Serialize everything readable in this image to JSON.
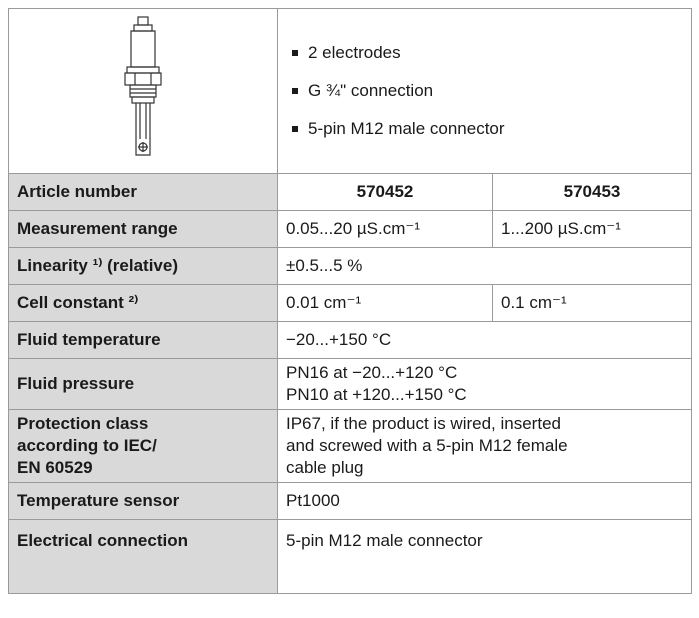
{
  "features": [
    "2 electrodes",
    "G ¾\" connection",
    "5-pin M12 male connector"
  ],
  "table": {
    "header": [
      "Article number",
      "570452",
      "570453"
    ],
    "rows": [
      [
        "Measurement range",
        "0.05...20 µS.cm⁻¹",
        "1...200 µS.cm⁻¹"
      ],
      [
        "Linearity ¹⁾ (relative)",
        "±0.5...5 %"
      ],
      [
        "Cell constant ²⁾",
        "0.01 cm⁻¹",
        "0.1 cm⁻¹"
      ],
      [
        "Fluid temperature",
        "−20...+150 °C"
      ],
      [
        "Fluid pressure",
        [
          "PN16 at −20...+120 °C",
          "PN10 at +120...+150 °C"
        ]
      ],
      [
        [
          "Protection class",
          "according to IEC/",
          "EN 60529"
        ],
        [
          "IP67, if the product is wired, inserted",
          "and screwed with a 5-pin M12 female",
          "cable plug"
        ]
      ],
      [
        "Temperature sensor",
        "Pt1000"
      ],
      [
        "Electrical connection",
        "5-pin M12 male connector"
      ]
    ]
  }
}
